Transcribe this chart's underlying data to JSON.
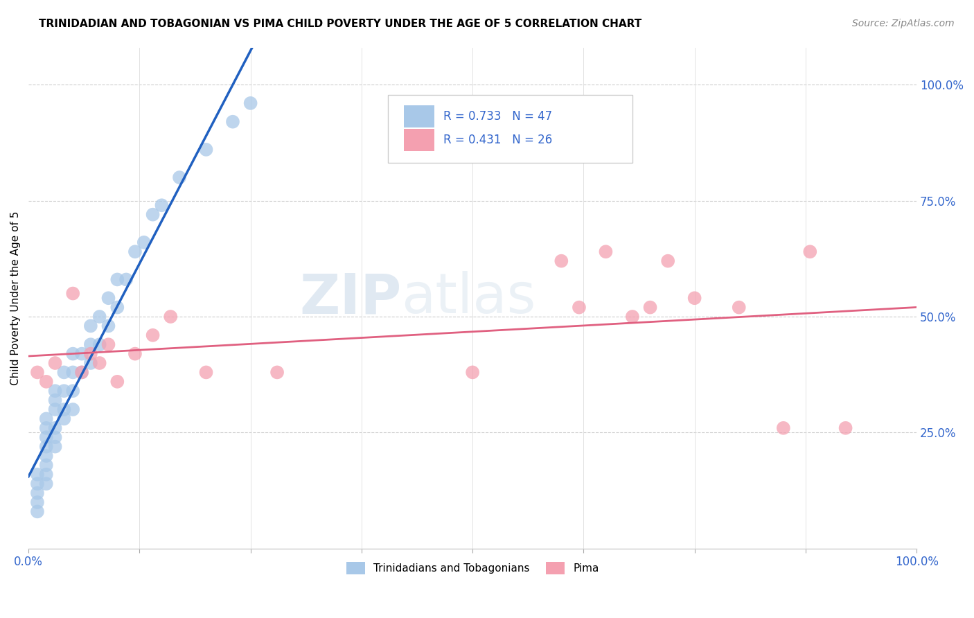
{
  "title": "TRINIDADIAN AND TOBAGONIAN VS PIMA CHILD POVERTY UNDER THE AGE OF 5 CORRELATION CHART",
  "source": "Source: ZipAtlas.com",
  "ylabel": "Child Poverty Under the Age of 5",
  "blue_label": "Trinidadians and Tobagonians",
  "pink_label": "Pima",
  "blue_R": 0.733,
  "blue_N": 47,
  "pink_R": 0.431,
  "pink_N": 26,
  "blue_color": "#a8c8e8",
  "pink_color": "#f4a0b0",
  "blue_line_color": "#2060c0",
  "pink_line_color": "#e06080",
  "legend_text_color": "#3366cc",
  "watermark_zip": "ZIP",
  "watermark_atlas": "atlas",
  "blue_x": [
    0.01,
    0.01,
    0.01,
    0.01,
    0.01,
    0.02,
    0.02,
    0.02,
    0.02,
    0.02,
    0.02,
    0.02,
    0.02,
    0.03,
    0.03,
    0.03,
    0.03,
    0.03,
    0.03,
    0.04,
    0.04,
    0.04,
    0.04,
    0.05,
    0.05,
    0.05,
    0.05,
    0.06,
    0.06,
    0.07,
    0.07,
    0.07,
    0.08,
    0.08,
    0.09,
    0.09,
    0.1,
    0.1,
    0.11,
    0.12,
    0.13,
    0.14,
    0.15,
    0.17,
    0.2,
    0.23,
    0.25
  ],
  "blue_y": [
    0.08,
    0.1,
    0.12,
    0.14,
    0.16,
    0.14,
    0.16,
    0.18,
    0.2,
    0.22,
    0.24,
    0.26,
    0.28,
    0.22,
    0.24,
    0.26,
    0.3,
    0.32,
    0.34,
    0.28,
    0.3,
    0.34,
    0.38,
    0.3,
    0.34,
    0.38,
    0.42,
    0.38,
    0.42,
    0.4,
    0.44,
    0.48,
    0.44,
    0.5,
    0.48,
    0.54,
    0.52,
    0.58,
    0.58,
    0.64,
    0.66,
    0.72,
    0.74,
    0.8,
    0.86,
    0.92,
    0.96
  ],
  "pink_x": [
    0.01,
    0.02,
    0.03,
    0.05,
    0.06,
    0.07,
    0.08,
    0.09,
    0.1,
    0.12,
    0.14,
    0.16,
    0.2,
    0.28,
    0.5,
    0.6,
    0.62,
    0.65,
    0.68,
    0.7,
    0.72,
    0.75,
    0.8,
    0.85,
    0.88,
    0.92
  ],
  "pink_y": [
    0.38,
    0.36,
    0.4,
    0.55,
    0.38,
    0.42,
    0.4,
    0.44,
    0.36,
    0.42,
    0.46,
    0.5,
    0.38,
    0.38,
    0.38,
    0.62,
    0.52,
    0.64,
    0.5,
    0.52,
    0.62,
    0.54,
    0.52,
    0.26,
    0.64,
    0.26
  ],
  "figsize": [
    14.06,
    8.92
  ],
  "dpi": 100
}
